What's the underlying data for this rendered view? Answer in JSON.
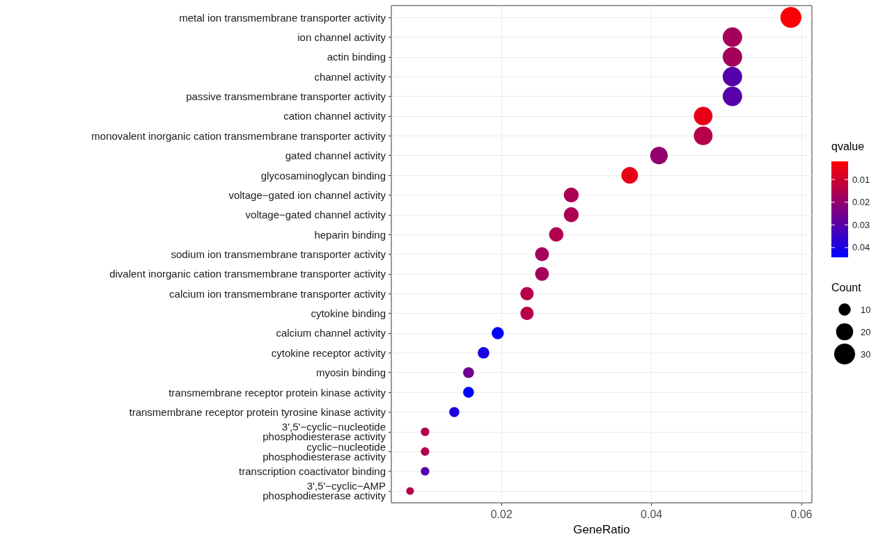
{
  "chart_data": {
    "type": "bubble",
    "orientation": "horizontal",
    "xlabel": "GeneRatio",
    "categories": [
      "metal ion transmembrane transporter activity",
      "ion channel activity",
      "actin binding",
      "channel activity",
      "passive transmembrane transporter activity",
      "cation channel activity",
      "monovalent inorganic cation transmembrane transporter activity",
      "gated channel activity",
      "glycosaminoglycan binding",
      "voltage−gated ion channel activity",
      "voltage−gated channel activity",
      "heparin binding",
      "sodium ion transmembrane transporter activity",
      "divalent inorganic cation transmembrane transporter activity",
      "calcium ion transmembrane transporter activity",
      "cytokine binding",
      "calcium channel activity",
      "cytokine receptor activity",
      "myosin binding",
      "transmembrane receptor protein kinase activity",
      "transmembrane receptor protein tyrosine kinase activity",
      "3',5'−cyclic−nucleotide\nphosphodiesterase activity",
      "cyclic−nucleotide\nphosphodiesterase activity",
      "transcription coactivator binding",
      "3',5'−cyclic−AMP\nphosphodiesterase activity"
    ],
    "values": [
      0.0586,
      0.0508,
      0.0508,
      0.0508,
      0.0508,
      0.0469,
      0.0469,
      0.041,
      0.0371,
      0.0293,
      0.0293,
      0.0273,
      0.0254,
      0.0254,
      0.0234,
      0.0234,
      0.0195,
      0.0176,
      0.0156,
      0.0156,
      0.0137,
      0.0098,
      0.0098,
      0.0098,
      0.0078
    ],
    "sizes": [
      30,
      26,
      26,
      26,
      26,
      24,
      24,
      21,
      19,
      15,
      15,
      14,
      13,
      13,
      12,
      12,
      10,
      9,
      8,
      8,
      7,
      5,
      5,
      5,
      4
    ],
    "cvalues": [
      0.003,
      0.017,
      0.017,
      0.03,
      0.03,
      0.006,
      0.014,
      0.02,
      0.006,
      0.016,
      0.016,
      0.015,
      0.017,
      0.017,
      0.014,
      0.014,
      0.044,
      0.04,
      0.026,
      0.044,
      0.039,
      0.015,
      0.015,
      0.03,
      0.014
    ],
    "clim": [
      0.002,
      0.0443
    ],
    "cticks": [
      0.01,
      0.02,
      0.03,
      0.04
    ],
    "clabel": "qvalue",
    "legend_title": "Count",
    "size_legend": [
      10,
      20,
      30
    ],
    "xlim": [
      0.0053,
      0.0614
    ],
    "xticks": [
      0.02,
      0.04,
      0.06
    ],
    "grid": true,
    "marker": "circle"
  }
}
